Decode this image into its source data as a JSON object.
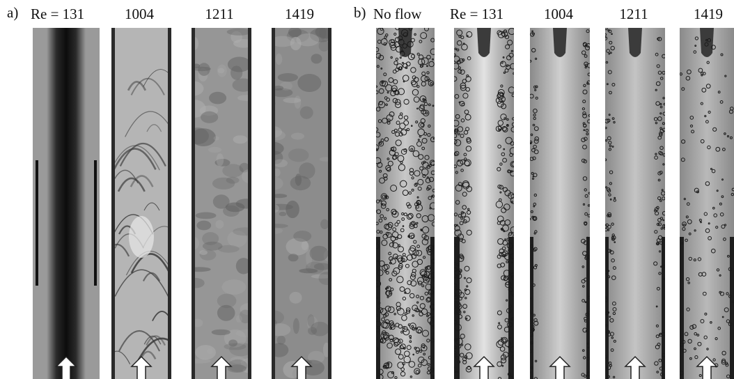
{
  "panels": [
    {
      "id": "a",
      "label": "a)",
      "columns": [
        "Re = 131",
        "1004",
        "1211",
        "1419"
      ]
    },
    {
      "id": "b",
      "label": "b)",
      "columns": [
        "No flow",
        "Re = 131",
        "1004",
        "1211",
        "1419"
      ]
    }
  ],
  "flow_arrow_icon": "up-arrow-icon",
  "colors": {
    "background": "#ffffff",
    "tube_gray": "#a9a9a9",
    "dye_dark": "#1a1a1a"
  }
}
